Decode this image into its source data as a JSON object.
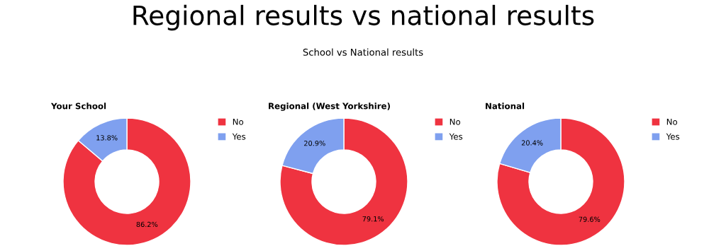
{
  "chart_data": [
    {
      "type": "other",
      "title": "Regional results vs national results",
      "subtitle": "School vs National results"
    },
    {
      "type": "donut",
      "title": "Your School",
      "categories": [
        "No",
        "Yes"
      ],
      "values": [
        86.2,
        13.8
      ],
      "value_labels": [
        "86.2%",
        "13.8%"
      ],
      "colors": [
        "#ef3340",
        "#7fa0ef"
      ],
      "legend": "top right"
    },
    {
      "type": "donut",
      "title": "Regional (West Yorkshire)",
      "categories": [
        "No",
        "Yes"
      ],
      "values": [
        79.1,
        20.9
      ],
      "value_labels": [
        "79.1%",
        "20.9%"
      ],
      "colors": [
        "#ef3340",
        "#7fa0ef"
      ],
      "legend": "top right"
    },
    {
      "type": "donut",
      "title": "National",
      "categories": [
        "No",
        "Yes"
      ],
      "values": [
        79.6,
        20.4
      ],
      "value_labels": [
        "79.6%",
        "20.4%"
      ],
      "colors": [
        "#ef3340",
        "#7fa0ef"
      ],
      "legend": "top right"
    }
  ]
}
